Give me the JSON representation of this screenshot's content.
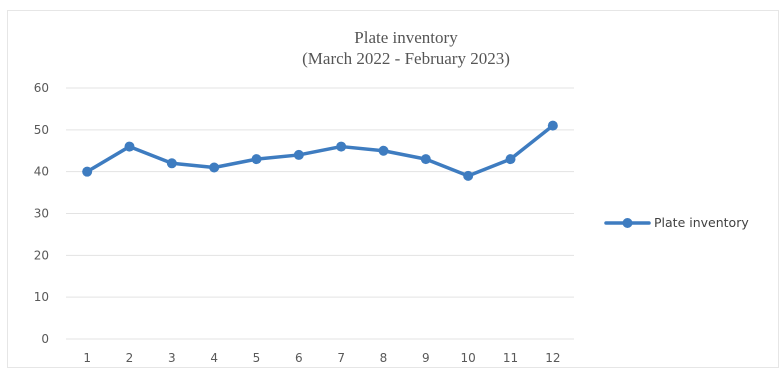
{
  "chart_data": {
    "type": "line",
    "title": "Plate inventory",
    "subtitle": "(March 2022 - February 2023)",
    "x": [
      1,
      2,
      3,
      4,
      5,
      6,
      7,
      8,
      9,
      10,
      11,
      12
    ],
    "x_tick_labels": [
      "1",
      "2",
      "3",
      "4",
      "5",
      "6",
      "7",
      "8",
      "9",
      "10",
      "11",
      "12"
    ],
    "series": [
      {
        "name": "Plate inventory",
        "values": [
          40,
          46,
          42,
          41,
          43,
          44,
          46,
          45,
          43,
          39,
          43,
          51
        ],
        "color": "#3e7cc0"
      }
    ],
    "ylim": [
      0,
      60
    ],
    "y_ticks": [
      0,
      10,
      20,
      30,
      40,
      50,
      60
    ],
    "xlabel": "",
    "ylabel": "",
    "grid": "horizontal",
    "legend_position": "right",
    "marker": "circle"
  }
}
